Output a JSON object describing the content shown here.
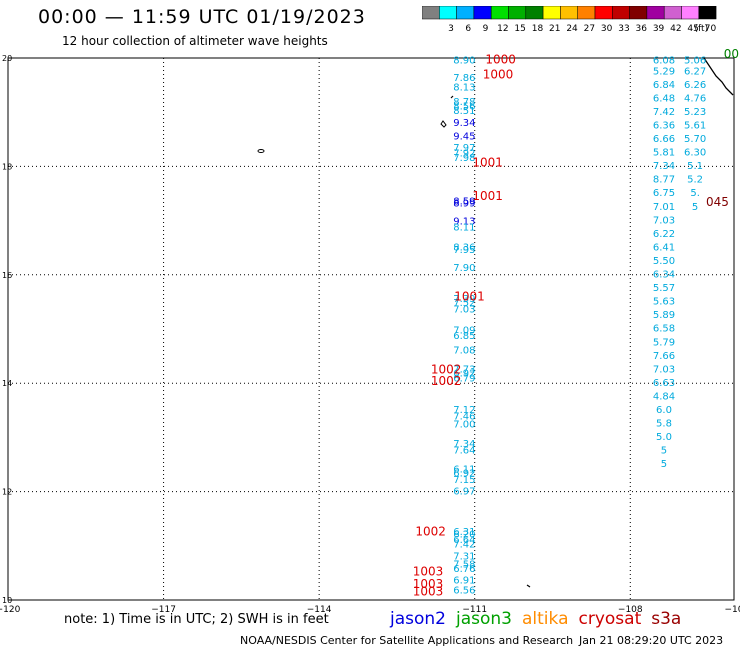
{
  "header": {
    "title": "00:00 — 11:59 UTC 01/19/2023",
    "subtitle": "12 hour collection of altimeter wave heights"
  },
  "scale": {
    "unit": "(ft)",
    "colors": [
      "#808080",
      "#00ffff",
      "#00b0ff",
      "#0000ff",
      "#00e000",
      "#00b000",
      "#008000",
      "#ffff00",
      "#ffc000",
      "#ff8000",
      "#ff0000",
      "#c00000",
      "#800000",
      "#a000a0",
      "#d060d0",
      "#ff80ff",
      "#000000"
    ],
    "labels": [
      "",
      "3",
      "6",
      "9",
      "12",
      "15",
      "18",
      "21",
      "24",
      "27",
      "30",
      "33",
      "36",
      "39",
      "42",
      "45",
      "70"
    ]
  },
  "map": {
    "lon_range": [
      -120,
      -106
    ],
    "lat_range": [
      10,
      20
    ],
    "x_ticks": [
      {
        "lon": -120,
        "label": "−120"
      },
      {
        "lon": -117,
        "label": "−117"
      },
      {
        "lon": -114,
        "label": "−114"
      },
      {
        "lon": -111,
        "label": "−111"
      },
      {
        "lon": -108,
        "label": "−108"
      },
      {
        "lon": -106,
        "label": "−10"
      }
    ],
    "y_ticks": [
      {
        "lat": 20,
        "label": "20"
      },
      {
        "lat": 18,
        "label": "18"
      },
      {
        "lat": 16,
        "label": "16"
      },
      {
        "lat": 14,
        "label": "14"
      },
      {
        "lat": 12,
        "label": "12"
      },
      {
        "lat": 10,
        "label": "10"
      }
    ]
  },
  "chart_data": {
    "type": "scatter",
    "xlabel": "",
    "ylabel": "",
    "xlim": [
      -120,
      -106
    ],
    "ylim": [
      10,
      20
    ],
    "series": [
      {
        "name": "jason2",
        "color": "#0000dd",
        "points": [
          {
            "lon": -111.2,
            "lat": 17.3,
            "label": "8.59"
          },
          {
            "lon": -111.2,
            "lat": 17.26,
            "label": "8.99"
          },
          {
            "lon": -111.2,
            "lat": 18.75,
            "label": "9.34"
          },
          {
            "lon": -111.2,
            "lat": 18.5,
            "label": "9.45"
          },
          {
            "lon": -111.2,
            "lat": 16.93,
            "label": "9.13"
          }
        ]
      },
      {
        "name": "jason3",
        "color": "#00aadd",
        "points": [
          {
            "lon": -111.2,
            "lat": 19.9,
            "label": "8.90"
          },
          {
            "lon": -111.2,
            "lat": 19.58,
            "label": "7.86"
          },
          {
            "lon": -111.2,
            "lat": 19.4,
            "label": "8.13"
          },
          {
            "lon": -111.2,
            "lat": 19.13,
            "label": "8.78"
          },
          {
            "lon": -111.2,
            "lat": 19.05,
            "label": "8.56"
          },
          {
            "lon": -111.2,
            "lat": 18.97,
            "label": "8.51"
          },
          {
            "lon": -111.2,
            "lat": 18.28,
            "label": "7.97"
          },
          {
            "lon": -111.2,
            "lat": 18.18,
            "label": "7.92"
          },
          {
            "lon": -111.2,
            "lat": 18.1,
            "label": "7.98"
          },
          {
            "lon": -111.2,
            "lat": 16.82,
            "label": "8.11"
          },
          {
            "lon": -111.2,
            "lat": 16.45,
            "label": "8.36"
          },
          {
            "lon": -111.2,
            "lat": 16.4,
            "label": "7.95"
          },
          {
            "lon": -111.2,
            "lat": 16.07,
            "label": "7.90"
          },
          {
            "lon": -111.2,
            "lat": 15.5,
            "label": "7.39"
          },
          {
            "lon": -111.2,
            "lat": 15.42,
            "label": "7.52"
          },
          {
            "lon": -111.2,
            "lat": 15.3,
            "label": "7.03"
          },
          {
            "lon": -111.2,
            "lat": 14.92,
            "label": "7.09"
          },
          {
            "lon": -111.2,
            "lat": 14.82,
            "label": "6.85"
          },
          {
            "lon": -111.2,
            "lat": 14.55,
            "label": "7.08"
          },
          {
            "lon": -111.2,
            "lat": 14.2,
            "label": "7.73"
          },
          {
            "lon": -111.2,
            "lat": 14.12,
            "label": "6.92"
          },
          {
            "lon": -111.2,
            "lat": 14.03,
            "label": "6.79"
          },
          {
            "lon": -111.2,
            "lat": 13.45,
            "label": "7.12"
          },
          {
            "lon": -111.2,
            "lat": 13.33,
            "label": "7.46"
          },
          {
            "lon": -111.2,
            "lat": 13.18,
            "label": "7.00"
          },
          {
            "lon": -111.2,
            "lat": 12.82,
            "label": "7.34"
          },
          {
            "lon": -111.2,
            "lat": 12.7,
            "label": "7.64"
          },
          {
            "lon": -111.2,
            "lat": 12.35,
            "label": "6.11"
          },
          {
            "lon": -111.2,
            "lat": 12.28,
            "label": "6.92"
          },
          {
            "lon": -111.2,
            "lat": 12.16,
            "label": "7.15"
          },
          {
            "lon": -111.2,
            "lat": 11.95,
            "label": "6.97"
          },
          {
            "lon": -111.2,
            "lat": 11.2,
            "label": "6.31"
          },
          {
            "lon": -111.2,
            "lat": 11.15,
            "label": "6.20"
          },
          {
            "lon": -111.2,
            "lat": 11.05,
            "label": "6.64"
          },
          {
            "lon": -111.2,
            "lat": 10.97,
            "label": "7.42"
          },
          {
            "lon": -111.2,
            "lat": 10.75,
            "label": "7.31"
          },
          {
            "lon": -111.2,
            "lat": 10.6,
            "label": "7.58"
          },
          {
            "lon": -111.2,
            "lat": 10.52,
            "label": "6.76"
          },
          {
            "lon": -111.2,
            "lat": 10.3,
            "label": "6.91"
          },
          {
            "lon": -111.2,
            "lat": 10.12,
            "label": "6.56"
          },
          {
            "lon": -107.35,
            "lat": 19.9,
            "label": "6.08"
          },
          {
            "lon": -107.35,
            "lat": 19.7,
            "label": "5.29"
          },
          {
            "lon": -107.35,
            "lat": 19.45,
            "label": "6.84"
          },
          {
            "lon": -107.35,
            "lat": 19.2,
            "label": "6.48"
          },
          {
            "lon": -107.35,
            "lat": 18.95,
            "label": "7.42"
          },
          {
            "lon": -107.35,
            "lat": 18.7,
            "label": "6.36"
          },
          {
            "lon": -107.35,
            "lat": 18.45,
            "label": "6.66"
          },
          {
            "lon": -107.35,
            "lat": 18.2,
            "label": "5.81"
          },
          {
            "lon": -107.35,
            "lat": 17.95,
            "label": "7.34"
          },
          {
            "lon": -107.35,
            "lat": 17.7,
            "label": "8.77"
          },
          {
            "lon": -107.35,
            "lat": 17.45,
            "label": "6.75"
          },
          {
            "lon": -107.35,
            "lat": 17.2,
            "label": "7.01"
          },
          {
            "lon": -107.35,
            "lat": 16.95,
            "label": "7.03"
          },
          {
            "lon": -107.35,
            "lat": 16.7,
            "label": "6.22"
          },
          {
            "lon": -107.35,
            "lat": 16.45,
            "label": "6.41"
          },
          {
            "lon": -107.35,
            "lat": 16.2,
            "label": "5.50"
          },
          {
            "lon": -107.35,
            "lat": 15.95,
            "label": "6.34"
          },
          {
            "lon": -107.35,
            "lat": 15.7,
            "label": "5.57"
          },
          {
            "lon": -107.35,
            "lat": 15.45,
            "label": "5.63"
          },
          {
            "lon": -107.35,
            "lat": 15.2,
            "label": "5.89"
          },
          {
            "lon": -107.35,
            "lat": 14.95,
            "label": "6.58"
          },
          {
            "lon": -107.35,
            "lat": 14.7,
            "label": "5.79"
          },
          {
            "lon": -107.35,
            "lat": 14.45,
            "label": "7.66"
          },
          {
            "lon": -107.35,
            "lat": 14.2,
            "label": "7.03"
          },
          {
            "lon": -107.35,
            "lat": 13.95,
            "label": "6.63"
          },
          {
            "lon": -107.35,
            "lat": 13.7,
            "label": "4.84"
          },
          {
            "lon": -107.35,
            "lat": 13.45,
            "label": "6.0"
          },
          {
            "lon": -107.35,
            "lat": 13.2,
            "label": "5.8"
          },
          {
            "lon": -107.35,
            "lat": 12.95,
            "label": "5.0"
          },
          {
            "lon": -107.35,
            "lat": 12.7,
            "label": "5"
          },
          {
            "lon": -107.35,
            "lat": 12.45,
            "label": "5"
          },
          {
            "lon": -106.75,
            "lat": 19.9,
            "label": "5.06"
          },
          {
            "lon": -106.75,
            "lat": 19.7,
            "label": "6.27"
          },
          {
            "lon": -106.75,
            "lat": 19.45,
            "label": "6.26"
          },
          {
            "lon": -106.75,
            "lat": 19.2,
            "label": "4.76"
          },
          {
            "lon": -106.75,
            "lat": 18.95,
            "label": "5.23"
          },
          {
            "lon": -106.75,
            "lat": 18.7,
            "label": "5.61"
          },
          {
            "lon": -106.75,
            "lat": 18.45,
            "label": "5.70"
          },
          {
            "lon": -106.75,
            "lat": 18.2,
            "label": "6.30"
          },
          {
            "lon": -106.75,
            "lat": 17.95,
            "label": "5.1"
          },
          {
            "lon": -106.75,
            "lat": 17.7,
            "label": "5.2"
          },
          {
            "lon": -106.75,
            "lat": 17.45,
            "label": "5."
          },
          {
            "lon": -106.75,
            "lat": 17.2,
            "label": "5"
          }
        ]
      }
    ],
    "time_tags": [
      {
        "lon": -110.5,
        "lat": 19.9,
        "label": "1000",
        "color": "#dd0000"
      },
      {
        "lon": -110.55,
        "lat": 19.62,
        "label": "1000",
        "color": "#dd0000"
      },
      {
        "lon": -110.75,
        "lat": 18.0,
        "label": "1001",
        "color": "#dd0000"
      },
      {
        "lon": -110.75,
        "lat": 17.38,
        "label": "1001",
        "color": "#dd0000"
      },
      {
        "lon": -111.1,
        "lat": 15.53,
        "label": "1001",
        "color": "#dd0000"
      },
      {
        "lon": -111.55,
        "lat": 14.18,
        "label": "1002",
        "color": "#dd0000"
      },
      {
        "lon": -111.55,
        "lat": 13.97,
        "label": "1002",
        "color": "#dd0000"
      },
      {
        "lon": -111.85,
        "lat": 11.19,
        "label": "1002",
        "color": "#dd0000"
      },
      {
        "lon": -111.9,
        "lat": 10.45,
        "label": "1003",
        "color": "#dd0000"
      },
      {
        "lon": -111.9,
        "lat": 10.22,
        "label": "1003",
        "color": "#dd0000"
      },
      {
        "lon": -111.9,
        "lat": 10.08,
        "label": "1003",
        "color": "#dd0000"
      },
      {
        "lon": -106.05,
        "lat": 20.0,
        "label": "00",
        "color": "#008000"
      },
      {
        "lon": -106.32,
        "lat": 17.27,
        "label": "045",
        "color": "#800000"
      }
    ]
  },
  "legend": {
    "note": "note:  1) Time is in UTC;  2) SWH is in feet",
    "satellites": [
      {
        "name": "jason2",
        "color": "#0000dd"
      },
      {
        "name": "jason3",
        "color": "#00a000"
      },
      {
        "name": "altika",
        "color": "#ff8c00"
      },
      {
        "name": "cryosat",
        "color": "#cc0000"
      },
      {
        "name": "s3a",
        "color": "#990000"
      }
    ]
  },
  "footer": {
    "credit": "NOAA/NESDIS Center for Satellite Applications and Research",
    "timestamp": "Jan 21 08:29:20 UTC 2023"
  }
}
